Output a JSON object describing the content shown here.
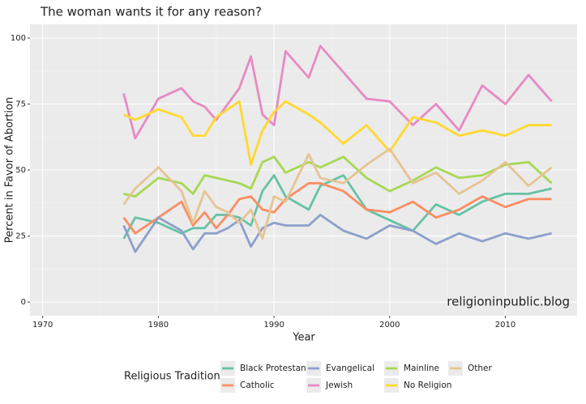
{
  "chart_data": {
    "type": "line",
    "title": "The woman wants it for any reason?",
    "x_label": "Year",
    "y_label": "Percent in Favor of Abortion",
    "annotation": "religioninpublic.blog",
    "legend_title": "Religious Tradition",
    "x": [
      1977,
      1978,
      1980,
      1982,
      1983,
      1984,
      1985,
      1986,
      1987,
      1988,
      1989,
      1990,
      1991,
      1993,
      1994,
      1996,
      1998,
      2000,
      2002,
      2004,
      2006,
      2008,
      2010,
      2012,
      2014
    ],
    "series": [
      {
        "name": "Black Protestant",
        "color": "#66c2a5",
        "values": [
          24,
          32,
          30,
          26,
          28,
          28,
          33,
          33,
          32,
          29,
          42,
          48,
          40,
          35,
          44,
          48,
          35,
          31,
          27,
          37,
          33,
          38,
          41,
          41,
          43
        ]
      },
      {
        "name": "Catholic",
        "color": "#fc8d62",
        "values": [
          32,
          26,
          32,
          38,
          29,
          34,
          28,
          33,
          39,
          40,
          35,
          34,
          39,
          45,
          45,
          42,
          35,
          34,
          38,
          32,
          35,
          40,
          36,
          39,
          39
        ]
      },
      {
        "name": "Evangelical",
        "color": "#8da0cb",
        "values": [
          29,
          19,
          32,
          27,
          20,
          26,
          26,
          28,
          31,
          21,
          28,
          30,
          29,
          29,
          33,
          27,
          24,
          29,
          27,
          22,
          26,
          23,
          26,
          24,
          26
        ]
      },
      {
        "name": "Jewish",
        "color": "#e78ac3",
        "values": [
          79,
          62,
          77,
          81,
          76,
          74,
          69,
          75,
          81,
          93,
          71,
          67,
          95,
          85,
          97,
          87,
          77,
          76,
          67,
          75,
          65,
          82,
          75,
          86,
          76
        ]
      },
      {
        "name": "Mainline",
        "color": "#a6d854",
        "values": [
          41,
          40,
          47,
          45,
          41,
          48,
          47,
          46,
          45,
          43,
          53,
          55,
          49,
          53,
          51,
          55,
          47,
          42,
          46,
          51,
          47,
          48,
          52,
          53,
          45
        ]
      },
      {
        "name": "No Religion",
        "color": "#ffd92f",
        "values": [
          71,
          69,
          73,
          70,
          63,
          63,
          70,
          73,
          76,
          52,
          65,
          72,
          76,
          71,
          68,
          60,
          67,
          57,
          70,
          68,
          63,
          65,
          63,
          67,
          67
        ]
      },
      {
        "name": "Other",
        "color": "#e5c494",
        "values": [
          37,
          43,
          51,
          42,
          30,
          42,
          36,
          34,
          30,
          35,
          24,
          40,
          38,
          56,
          47,
          45,
          52,
          58,
          45,
          49,
          41,
          46,
          53,
          44,
          51
        ]
      }
    ],
    "xlim": [
      1968.9,
      2016.2
    ],
    "xticks": [
      1970,
      1980,
      1990,
      2000,
      2010
    ],
    "ylim": [
      -5.2,
      105.2
    ],
    "yticks": [
      0,
      25,
      50,
      75,
      100
    ],
    "grid": true,
    "legend_position": "bottom"
  }
}
